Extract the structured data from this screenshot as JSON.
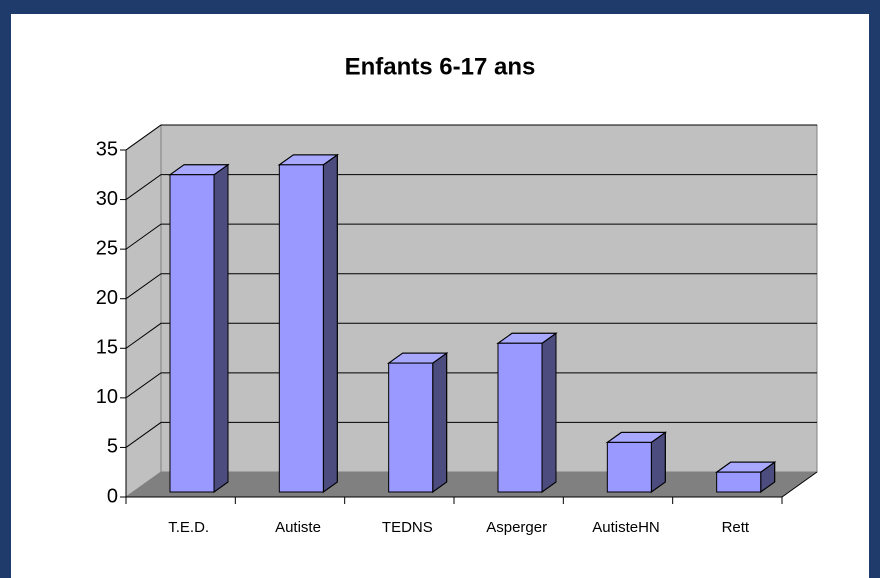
{
  "chart_data": {
    "type": "bar",
    "title": "Enfants 6-17 ans",
    "categories": [
      "T.E.D.",
      "Autiste",
      "TEDNS",
      "Asperger",
      "AutisteHN",
      "Rett"
    ],
    "values": [
      32,
      33,
      13,
      15,
      5,
      2
    ],
    "color": "#9999ff",
    "ylim": [
      0,
      35
    ],
    "yticks": [
      0,
      5,
      10,
      15,
      20,
      25,
      30,
      35
    ],
    "grid": true
  }
}
